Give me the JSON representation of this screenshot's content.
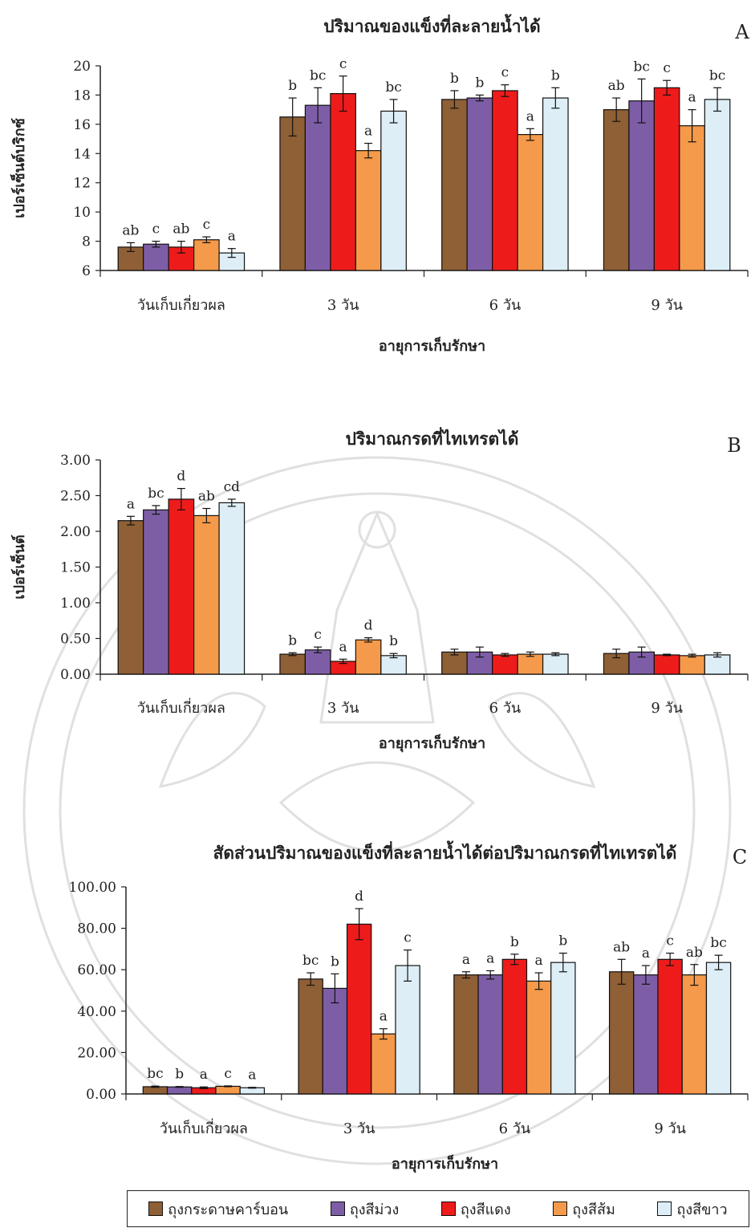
{
  "legend": [
    {
      "name": "ถุงกระดาษคาร์บอน",
      "color": "#8f5f35"
    },
    {
      "name": "ถุงสีม่วง",
      "color": "#7d5ea6"
    },
    {
      "name": "ถุงสีแดง",
      "color": "#ee1b1b"
    },
    {
      "name": "ถุงสีส้ม",
      "color": "#f49a4a"
    },
    {
      "name": "ถุงสีขาว",
      "color": "#ddeef6"
    }
  ],
  "chart_data": [
    {
      "type": "bar",
      "panel": "A",
      "title": "ปริมาณของแข็งที่ละลายน้ำได้",
      "xlabel": "อายุการเก็บรักษา",
      "ylabel": "เปอร์เซ็นต์บริกซ์",
      "ylim": [
        6,
        20
      ],
      "yticks": [
        "6",
        "8",
        "10",
        "12",
        "14",
        "16",
        "18",
        "20"
      ],
      "categories": [
        "วันเก็บเกี่ยวผล",
        "3 วัน",
        "6 วัน",
        "9 วัน"
      ],
      "series": [
        {
          "name": "ถุงกระดาษคาร์บอน",
          "values": [
            7.6,
            16.5,
            17.7,
            17.0
          ],
          "errors": [
            0.3,
            1.3,
            0.6,
            0.8
          ],
          "letters": [
            "ab",
            "b",
            "b",
            "ab"
          ]
        },
        {
          "name": "ถุงสีม่วง",
          "values": [
            7.8,
            17.3,
            17.8,
            17.6
          ],
          "errors": [
            0.2,
            1.2,
            0.2,
            1.5
          ],
          "letters": [
            "c",
            "bc",
            "b",
            "bc"
          ]
        },
        {
          "name": "ถุงสีแดง",
          "values": [
            7.6,
            18.1,
            18.3,
            18.5
          ],
          "errors": [
            0.4,
            1.2,
            0.4,
            0.5
          ],
          "letters": [
            "ab",
            "c",
            "c",
            "c"
          ]
        },
        {
          "name": "ถุงสีส้ม",
          "values": [
            8.1,
            14.2,
            15.3,
            15.9
          ],
          "errors": [
            0.2,
            0.5,
            0.4,
            1.1
          ],
          "letters": [
            "c",
            "a",
            "a",
            "a"
          ]
        },
        {
          "name": "ถุงสีขาว",
          "values": [
            7.2,
            16.9,
            17.8,
            17.7
          ],
          "errors": [
            0.3,
            0.8,
            0.7,
            0.8
          ],
          "letters": [
            "a",
            "bc",
            "b",
            "bc"
          ]
        }
      ]
    },
    {
      "type": "bar",
      "panel": "B",
      "title": "ปริมาณกรดที่ไทเทรตได้",
      "xlabel": "อายุการเก็บรักษา",
      "ylabel": "เปอร์เซ็นต์",
      "ylim": [
        0,
        3
      ],
      "yticks": [
        "0.00",
        "0.50",
        "1.00",
        "1.50",
        "2.00",
        "2.50",
        "3.00"
      ],
      "categories": [
        "วันเก็บเกี่ยวผล",
        "3 วัน",
        "6 วัน",
        "9 วัน"
      ],
      "series": [
        {
          "name": "ถุงกระดาษคาร์บอน",
          "values": [
            2.15,
            0.28,
            0.31,
            0.29
          ],
          "errors": [
            0.06,
            0.02,
            0.04,
            0.06
          ],
          "letters": [
            "a",
            "b",
            "",
            ""
          ]
        },
        {
          "name": "ถุงสีม่วง",
          "values": [
            2.3,
            0.34,
            0.31,
            0.31
          ],
          "errors": [
            0.06,
            0.04,
            0.07,
            0.07
          ],
          "letters": [
            "bc",
            "c",
            "",
            ""
          ]
        },
        {
          "name": "ถุงสีแดง",
          "values": [
            2.45,
            0.18,
            0.27,
            0.27
          ],
          "errors": [
            0.15,
            0.03,
            0.02,
            0.01
          ],
          "letters": [
            "d",
            "a",
            "",
            ""
          ]
        },
        {
          "name": "ถุงสีส้ม",
          "values": [
            2.22,
            0.48,
            0.28,
            0.26
          ],
          "errors": [
            0.1,
            0.03,
            0.03,
            0.02
          ],
          "letters": [
            "ab",
            "d",
            "",
            ""
          ]
        },
        {
          "name": "ถุงสีขาว",
          "values": [
            2.4,
            0.26,
            0.28,
            0.27
          ],
          "errors": [
            0.05,
            0.03,
            0.02,
            0.03
          ],
          "letters": [
            "cd",
            "b",
            "",
            ""
          ]
        }
      ]
    },
    {
      "type": "bar",
      "panel": "C",
      "title": "สัดส่วนปริมาณของแข็งที่ละลายน้ำได้ต่อปริมาณกรดที่ไทเทรตได้",
      "xlabel": "อายุการเก็บรักษา",
      "ylabel": "",
      "ylim": [
        0,
        100
      ],
      "yticks": [
        "0.00",
        "20.00",
        "40.00",
        "60.00",
        "80.00",
        "100.00"
      ],
      "categories": [
        "วันเก็บเกี่ยวผล",
        "3 วัน",
        "6 วัน",
        "9 วัน"
      ],
      "series": [
        {
          "name": "ถุงกระดาษคาร์บอน",
          "values": [
            3.5,
            55.5,
            57.5,
            59.0
          ],
          "errors": [
            0.3,
            3.0,
            1.5,
            6.0
          ],
          "letters": [
            "bc",
            "bc",
            "a",
            "ab"
          ]
        },
        {
          "name": "ถุงสีม่วง",
          "values": [
            3.4,
            51.0,
            57.5,
            57.5
          ],
          "errors": [
            0.2,
            7.0,
            2.0,
            4.5
          ],
          "letters": [
            "b",
            "b",
            "a",
            "a"
          ]
        },
        {
          "name": "ถุงสีแดง",
          "values": [
            3.0,
            82.0,
            65.0,
            65.0
          ],
          "errors": [
            0.4,
            7.5,
            2.5,
            3.0
          ],
          "letters": [
            "a",
            "d",
            "b",
            "c"
          ]
        },
        {
          "name": "ถุงสีส้ม",
          "values": [
            3.7,
            29.0,
            54.5,
            57.5
          ],
          "errors": [
            0.2,
            2.5,
            4.0,
            5.0
          ],
          "letters": [
            "c",
            "a",
            "a",
            "ab"
          ]
        },
        {
          "name": "ถุงสีขาว",
          "values": [
            3.0,
            62.0,
            63.5,
            63.5
          ],
          "errors": [
            0.2,
            7.5,
            4.5,
            3.5
          ],
          "letters": [
            "a",
            "c",
            "b",
            "bc"
          ]
        }
      ]
    }
  ]
}
